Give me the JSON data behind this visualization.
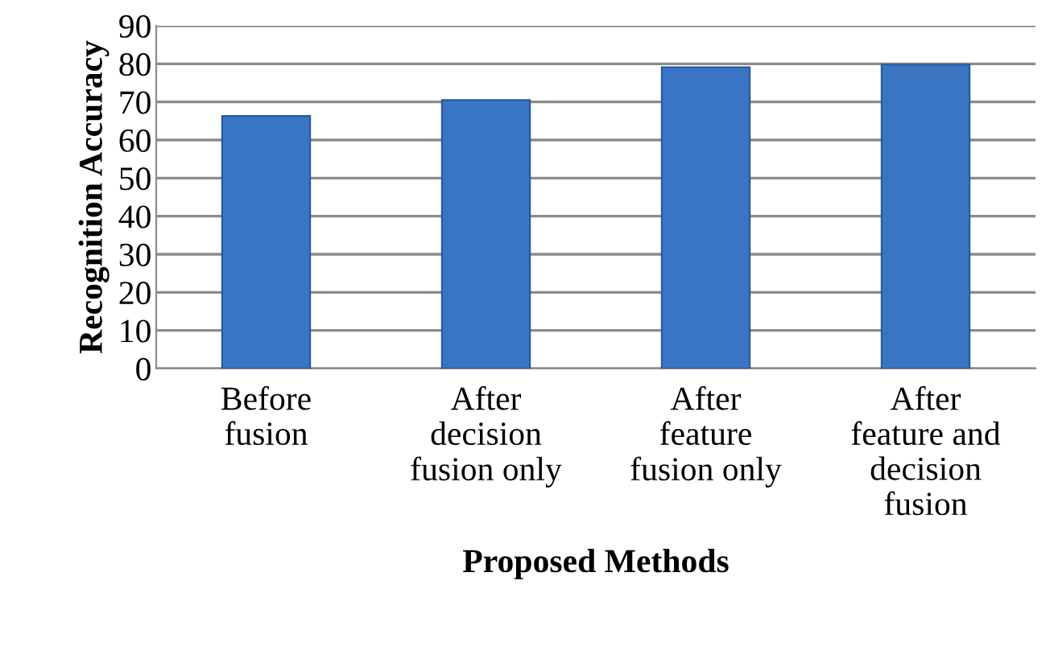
{
  "chart_data": {
    "type": "bar",
    "xlabel": "Proposed Methods",
    "ylabel": "Recognition Accuracy",
    "categories": [
      "Before fusion",
      "After decision fusion only",
      "After feature fusion only",
      "After feature and decision fusion"
    ],
    "values": [
      66.3,
      70.5,
      79.1,
      79.8
    ],
    "color": "#3a75c4",
    "ylim": [
      0,
      90
    ],
    "yticks": [
      0,
      10,
      20,
      30,
      40,
      50,
      60,
      70,
      80,
      90
    ],
    "grid": "y",
    "legend": false
  }
}
